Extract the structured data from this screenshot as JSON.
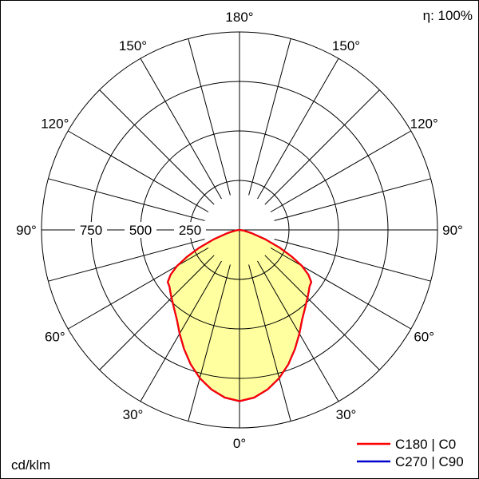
{
  "header": {
    "efficiency_label": "η: 100%"
  },
  "footer": {
    "unit_label": "cd/klm"
  },
  "chart_data": {
    "type": "polar",
    "unit": "cd/klm",
    "efficiency": "η: 100%",
    "r_ticks": [
      250,
      500,
      750
    ],
    "r_max": 1000,
    "angle_step_deg": 15,
    "angle_labels": [
      "0°",
      "30°",
      "60°",
      "90°",
      "120°",
      "150°",
      "180°"
    ],
    "grid_color": "#000000",
    "series": [
      {
        "name": "C180 | C0",
        "color": "#ff0000",
        "fill": "#ffffa0",
        "gammas": [
          0,
          5,
          10,
          15,
          20,
          25,
          30,
          35,
          40,
          45,
          48,
          51,
          54,
          57,
          60,
          63,
          66,
          70,
          75,
          80,
          85,
          90
        ],
        "values": [
          865,
          850,
          818,
          775,
          722,
          663,
          605,
          552,
          515,
          485,
          470,
          455,
          448,
          415,
          365,
          295,
          225,
          140,
          65,
          25,
          8,
          0
        ]
      },
      {
        "name": "C270 | C90",
        "color": "#0000cc",
        "fill": "none",
        "gammas": [
          0,
          5,
          10,
          15,
          20,
          25,
          30,
          35,
          40,
          45,
          48,
          51,
          54,
          57,
          60,
          63,
          66,
          70,
          75,
          80,
          85,
          90
        ],
        "values": [
          865,
          850,
          818,
          775,
          722,
          663,
          605,
          552,
          515,
          485,
          470,
          455,
          448,
          415,
          365,
          295,
          225,
          140,
          65,
          25,
          8,
          0
        ]
      }
    ]
  }
}
